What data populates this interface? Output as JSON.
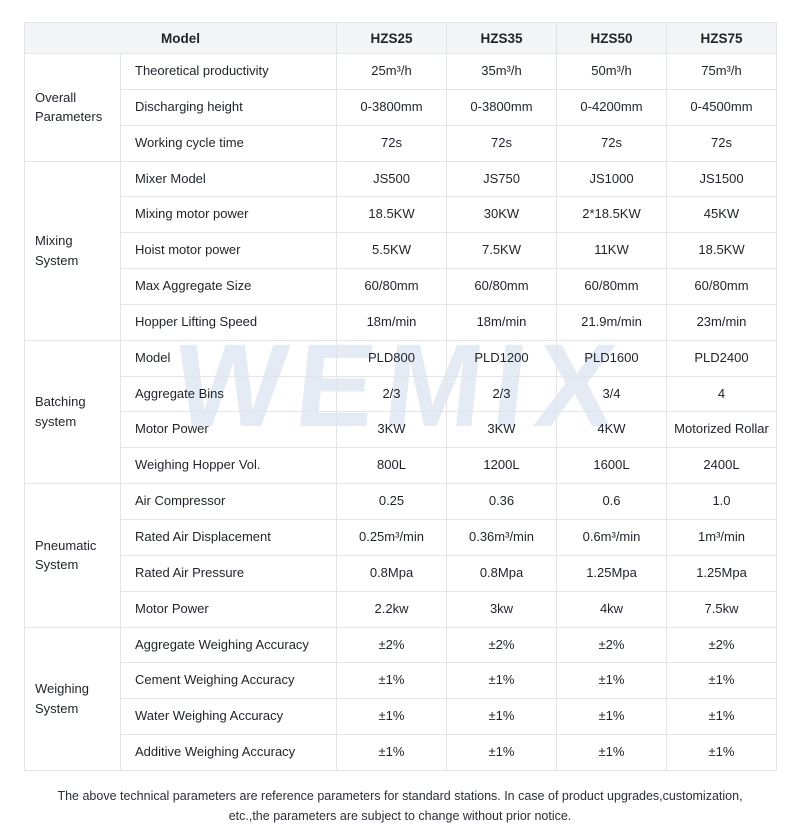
{
  "page": {
    "watermark": "WEMIX",
    "footer_line1": "The above technical parameters are reference parameters for standard stations. In case of product upgrades,customization,",
    "footer_line2": "etc.,the parameters are subject to change without prior notice."
  },
  "table": {
    "header": {
      "model_label": "Model",
      "columns": [
        "HZS25",
        "HZS35",
        "HZS50",
        "HZS75"
      ]
    },
    "groups": [
      {
        "name": "Overall Parameters",
        "rows": [
          {
            "label": "Theoretical productivity",
            "values": [
              "25m³/h",
              "35m³/h",
              "50m³/h",
              "75m³/h"
            ]
          },
          {
            "label": "Discharging height",
            "values": [
              "0-3800mm",
              "0-3800mm",
              "0-4200mm",
              "0-4500mm"
            ]
          },
          {
            "label": "Working cycle time",
            "values": [
              "72s",
              "72s",
              "72s",
              "72s"
            ]
          }
        ]
      },
      {
        "name": "Mixing System",
        "rows": [
          {
            "label": "Mixer Model",
            "values": [
              "JS500",
              "JS750",
              "JS1000",
              "JS1500"
            ]
          },
          {
            "label": "Mixing motor power",
            "values": [
              "18.5KW",
              "30KW",
              "2*18.5KW",
              "45KW"
            ]
          },
          {
            "label": "Hoist motor power",
            "values": [
              "5.5KW",
              "7.5KW",
              "11KW",
              "18.5KW"
            ]
          },
          {
            "label": "Max Aggregate Size",
            "values": [
              "60/80mm",
              "60/80mm",
              "60/80mm",
              "60/80mm"
            ]
          },
          {
            "label": "Hopper Lifting Speed",
            "values": [
              "18m/min",
              "18m/min",
              "21.9m/min",
              "23m/min"
            ]
          }
        ]
      },
      {
        "name": "Batching system",
        "rows": [
          {
            "label": "Model",
            "values": [
              "PLD800",
              "PLD1200",
              "PLD1600",
              "PLD2400"
            ]
          },
          {
            "label": "Aggregate Bins",
            "values": [
              "2/3",
              "2/3",
              "3/4",
              "4"
            ]
          },
          {
            "label": "Motor Power",
            "values": [
              "3KW",
              "3KW",
              "4KW",
              "Motorized Rollar"
            ]
          },
          {
            "label": "Weighing Hopper Vol.",
            "values": [
              "800L",
              "1200L",
              "1600L",
              "2400L"
            ]
          }
        ]
      },
      {
        "name": "Pneumatic System",
        "rows": [
          {
            "label": "Air Compressor",
            "values": [
              "0.25",
              "0.36",
              "0.6",
              "1.0"
            ]
          },
          {
            "label": "Rated Air Displacement",
            "values": [
              "0.25m³/min",
              "0.36m³/min",
              "0.6m³/min",
              "1m³/min"
            ]
          },
          {
            "label": "Rated Air Pressure",
            "values": [
              "0.8Mpa",
              "0.8Mpa",
              "1.25Mpa",
              "1.25Mpa"
            ]
          },
          {
            "label": "Motor Power",
            "values": [
              "2.2kw",
              "3kw",
              "4kw",
              "7.5kw"
            ]
          }
        ]
      },
      {
        "name": "Weighing System",
        "rows": [
          {
            "label": "Aggregate Weighing Accuracy",
            "values": [
              "±2%",
              "±2%",
              "±2%",
              "±2%"
            ]
          },
          {
            "label": "Cement Weighing Accuracy",
            "values": [
              "±1%",
              "±1%",
              "±1%",
              "±1%"
            ]
          },
          {
            "label": "Water Weighing Accuracy",
            "values": [
              "±1%",
              "±1%",
              "±1%",
              "±1%"
            ]
          },
          {
            "label": "Additive Weighing Accuracy",
            "values": [
              "±1%",
              "±1%",
              "±1%",
              "±1%"
            ]
          }
        ]
      }
    ]
  }
}
